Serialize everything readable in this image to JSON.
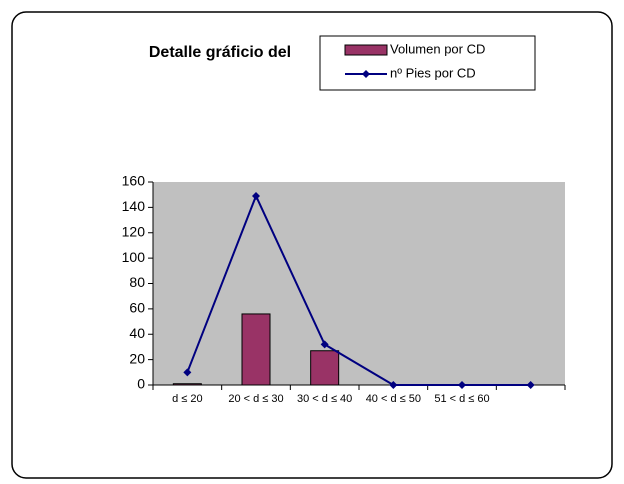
{
  "chart_data": {
    "type": "bar",
    "title": "Detalle gráficio del",
    "categories": [
      "d ≤ 20",
      "20 < d ≤ 30",
      "30 < d ≤ 40",
      "40 < d ≤ 50",
      "51 < d ≤ 60",
      null
    ],
    "series": [
      {
        "name": "Volumen por CD",
        "type": "bar",
        "color": "#993366",
        "values": [
          1,
          56,
          27,
          0,
          0,
          0
        ]
      },
      {
        "name": "nº Pies por CD",
        "type": "line",
        "color": "#000080",
        "values": [
          10,
          149,
          32,
          0,
          0,
          0
        ]
      }
    ],
    "ylim": [
      0,
      160
    ],
    "yticks": [
      0,
      20,
      40,
      60,
      80,
      100,
      120,
      140,
      160
    ]
  }
}
